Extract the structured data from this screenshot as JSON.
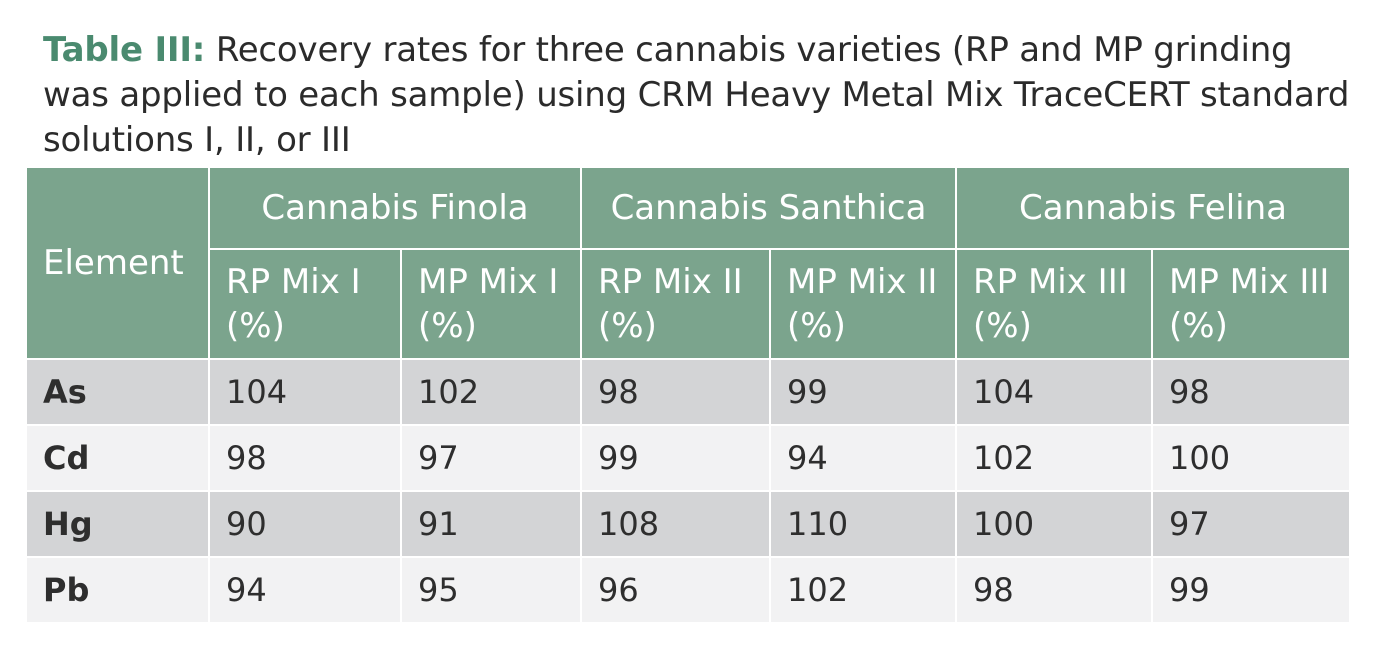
{
  "caption": {
    "label": "Table III:",
    "text": "Recovery rates for three cannabis varieties (RP and MP grinding was applied to each sample) using CRM Heavy Metal Mix TraceCERT standard solutions I, II, or III"
  },
  "table": {
    "element_header": "Element",
    "groups": [
      "Cannabis Finola",
      "Cannabis Santhica",
      "Cannabis Felina"
    ],
    "subheaders": [
      "RP Mix I (%)",
      "MP Mix I (%)",
      "RP Mix II (%)",
      "MP Mix II (%)",
      "RP Mix III (%)",
      "MP Mix III (%)"
    ],
    "rows": [
      {
        "element": "As",
        "values": [
          "104",
          "102",
          "98",
          "99",
          "104",
          "98"
        ]
      },
      {
        "element": "Cd",
        "values": [
          "98",
          "97",
          "99",
          "94",
          "102",
          "100"
        ]
      },
      {
        "element": "Hg",
        "values": [
          "90",
          "91",
          "108",
          "110",
          "100",
          "97"
        ]
      },
      {
        "element": "Pb",
        "values": [
          "94",
          "95",
          "96",
          "102",
          "98",
          "99"
        ]
      }
    ]
  },
  "colors": {
    "header_bg": "#7ba48d",
    "label": "#4a8a6f",
    "row_dark": "#d3d4d6",
    "row_light": "#f2f2f3"
  }
}
